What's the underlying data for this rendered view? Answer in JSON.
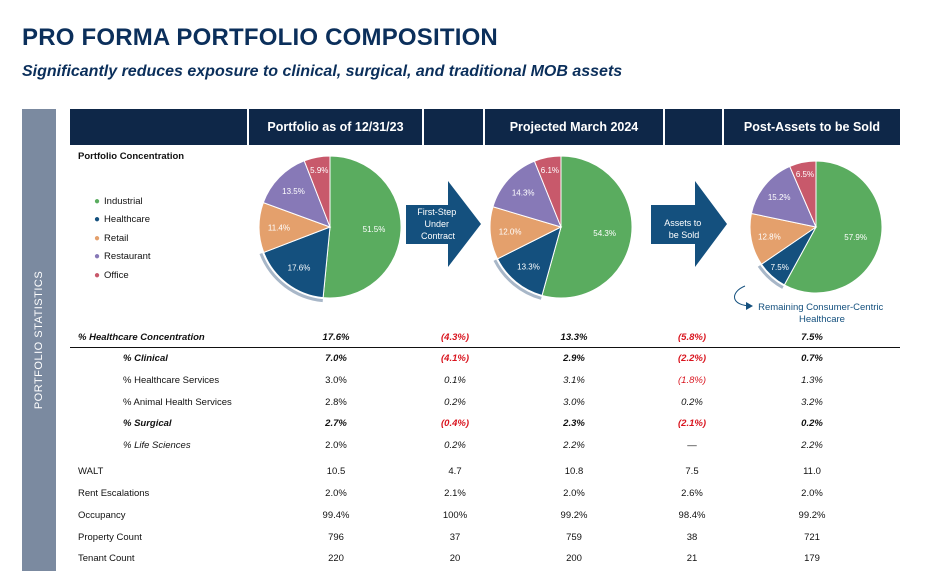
{
  "title": "PRO FORMA PORTFOLIO COMPOSITION",
  "subtitle": "Significantly reduces exposure to clinical, surgical, and traditional MOB assets",
  "side_label": "PORTFOLIO STATISTICS",
  "headers": [
    "Portfolio as of 12/31/23",
    "Projected March 2024",
    "Post-Assets to be Sold"
  ],
  "concentration_label": "Portfolio Concentration",
  "colors": {
    "Industrial": "#5aac5f",
    "Healthcare": "#14507e",
    "Retail": "#e4a06c",
    "Restaurant": "#8779b7",
    "Office": "#c8596b"
  },
  "arrows": [
    "First-Step Under Contract",
    "Assets to be Sold"
  ],
  "annotation": "Remaining Consumer-Centric Healthcare",
  "chart_data": [
    {
      "type": "pie",
      "categories": [
        "Industrial",
        "Healthcare",
        "Retail",
        "Restaurant",
        "Office"
      ],
      "values": [
        51.5,
        17.6,
        11.4,
        13.5,
        5.9
      ],
      "labels": [
        "51.5%",
        "17.6%",
        "11.4%",
        "13.5%",
        "5.9%"
      ]
    },
    {
      "type": "pie",
      "categories": [
        "Industrial",
        "Healthcare",
        "Retail",
        "Restaurant",
        "Office"
      ],
      "values": [
        54.3,
        13.3,
        12.0,
        14.3,
        6.1
      ],
      "labels": [
        "54.3%",
        "13.3%",
        "12.0%",
        "14.3%",
        "6.1%"
      ]
    },
    {
      "type": "pie",
      "categories": [
        "Industrial",
        "Healthcare",
        "Retail",
        "Restaurant",
        "Office"
      ],
      "values": [
        57.9,
        7.5,
        12.8,
        15.2,
        6.5
      ],
      "labels": [
        "57.9%",
        "7.5%",
        "12.8%",
        "15.2%",
        "6.5%"
      ]
    }
  ],
  "rows": [
    {
      "label": "% Healthcare Concentration",
      "indent": 0,
      "style": "bold-italic",
      "values": [
        "17.6%",
        "(4.3%)",
        "13.3%",
        "(5.8%)",
        "7.5%"
      ],
      "cellstyle": [
        "b",
        "ri",
        "b",
        "ri",
        "b"
      ]
    },
    {
      "label": "% Clinical",
      "indent": 1,
      "style": "bold-italic",
      "values": [
        "7.0%",
        "(4.1%)",
        "2.9%",
        "(2.2%)",
        "0.7%"
      ],
      "cellstyle": [
        "b",
        "ri",
        "b",
        "ri",
        "b"
      ]
    },
    {
      "label": "% Healthcare Services",
      "indent": 1,
      "style": "normal",
      "values": [
        "3.0%",
        "0.1%",
        "3.1%",
        "(1.8%)",
        "1.3%"
      ],
      "cellstyle": [
        "n",
        "i",
        "i",
        "ri",
        "i"
      ]
    },
    {
      "label": "% Animal Health Services",
      "indent": 1,
      "style": "normal",
      "values": [
        "2.8%",
        "0.2%",
        "3.0%",
        "0.2%",
        "3.2%"
      ],
      "cellstyle": [
        "n",
        "i",
        "i",
        "i",
        "i"
      ]
    },
    {
      "label": "% Surgical",
      "indent": 1,
      "style": "bold-italic",
      "values": [
        "2.7%",
        "(0.4%)",
        "2.3%",
        "(2.1%)",
        "0.2%"
      ],
      "cellstyle": [
        "b",
        "ri",
        "b",
        "ri",
        "b"
      ]
    },
    {
      "label": "% Life Sciences",
      "indent": 1,
      "style": "italic",
      "values": [
        "2.0%",
        "0.2%",
        "2.2%",
        "—",
        "2.2%"
      ],
      "cellstyle": [
        "n",
        "i",
        "i",
        "n",
        "i"
      ]
    },
    {
      "label": "WALT",
      "indent": 0,
      "style": "normal",
      "values": [
        "10.5",
        "4.7",
        "10.8",
        "7.5",
        "11.0"
      ],
      "cellstyle": [
        "n",
        "n",
        "n",
        "n",
        "n"
      ]
    },
    {
      "label": "Rent Escalations",
      "indent": 0,
      "style": "normal",
      "values": [
        "2.0%",
        "2.1%",
        "2.0%",
        "2.6%",
        "2.0%"
      ],
      "cellstyle": [
        "n",
        "n",
        "n",
        "n",
        "n"
      ]
    },
    {
      "label": "Occupancy",
      "indent": 0,
      "style": "normal",
      "values": [
        "99.4%",
        "100%",
        "99.2%",
        "98.4%",
        "99.2%"
      ],
      "cellstyle": [
        "n",
        "n",
        "n",
        "n",
        "n"
      ]
    },
    {
      "label": "Property Count",
      "indent": 0,
      "style": "normal",
      "values": [
        "796",
        "37",
        "759",
        "38",
        "721"
      ],
      "cellstyle": [
        "n",
        "n",
        "n",
        "n",
        "n"
      ]
    },
    {
      "label": "Tenant Count",
      "indent": 0,
      "style": "normal",
      "values": [
        "220",
        "20",
        "200",
        "21",
        "179"
      ],
      "cellstyle": [
        "n",
        "n",
        "n",
        "n",
        "n"
      ]
    }
  ]
}
